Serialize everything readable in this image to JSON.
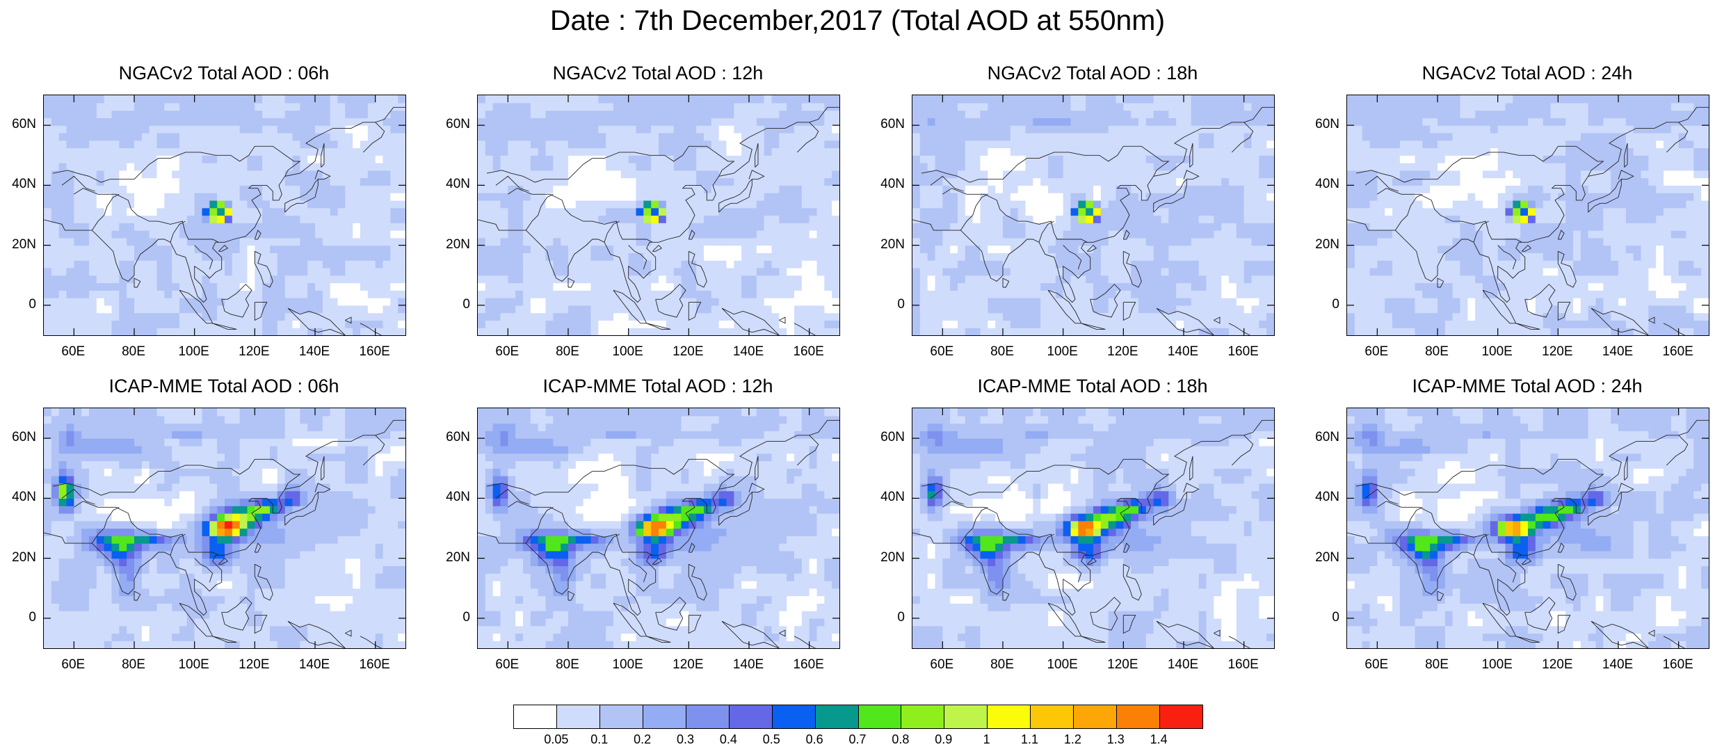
{
  "title": "Date : 7th December,2017 (Total AOD at 550nm)",
  "panels": [
    {
      "title": "NGACv2 Total AOD : 06h",
      "model": "NGACv2",
      "hour": "06h"
    },
    {
      "title": "NGACv2 Total AOD : 12h",
      "model": "NGACv2",
      "hour": "12h"
    },
    {
      "title": "NGACv2 Total AOD : 18h",
      "model": "NGACv2",
      "hour": "18h"
    },
    {
      "title": "NGACv2 Total AOD : 24h",
      "model": "NGACv2",
      "hour": "24h"
    },
    {
      "title": "ICAP-MME Total AOD : 06h",
      "model": "ICAP-MME",
      "hour": "06h"
    },
    {
      "title": "ICAP-MME Total AOD : 12h",
      "model": "ICAP-MME",
      "hour": "12h"
    },
    {
      "title": "ICAP-MME Total AOD : 18h",
      "model": "ICAP-MME",
      "hour": "18h"
    },
    {
      "title": "ICAP-MME Total AOD : 24h",
      "model": "ICAP-MME",
      "hour": "24h"
    }
  ],
  "map_extent": {
    "lon_min": 50,
    "lon_max": 170,
    "lat_min": -10,
    "lat_max": 70
  },
  "lon_ticks": [
    {
      "value": 60,
      "label": "60E"
    },
    {
      "value": 80,
      "label": "80E"
    },
    {
      "value": 100,
      "label": "100E"
    },
    {
      "value": 120,
      "label": "120E"
    },
    {
      "value": 140,
      "label": "140E"
    },
    {
      "value": 160,
      "label": "160E"
    }
  ],
  "lat_ticks": [
    {
      "value": 60,
      "label": "60N"
    },
    {
      "value": 40,
      "label": "40N"
    },
    {
      "value": 20,
      "label": "20N"
    },
    {
      "value": 0,
      "label": "0"
    }
  ],
  "colorbar": {
    "colors": [
      "#ffffff",
      "#cfdcfb",
      "#b2c3f6",
      "#93acf3",
      "#7f91ee",
      "#6468e6",
      "#0a60f0",
      "#07988e",
      "#52e71a",
      "#8eef1c",
      "#bff44a",
      "#fafc0a",
      "#fbc707",
      "#fca707",
      "#fa8006",
      "#fa2011"
    ],
    "labels": [
      "0.05",
      "0.1",
      "0.2",
      "0.3",
      "0.4",
      "0.5",
      "0.6",
      "0.7",
      "0.8",
      "0.9",
      "1",
      "1.1",
      "1.2",
      "1.3",
      "1.4"
    ]
  }
}
